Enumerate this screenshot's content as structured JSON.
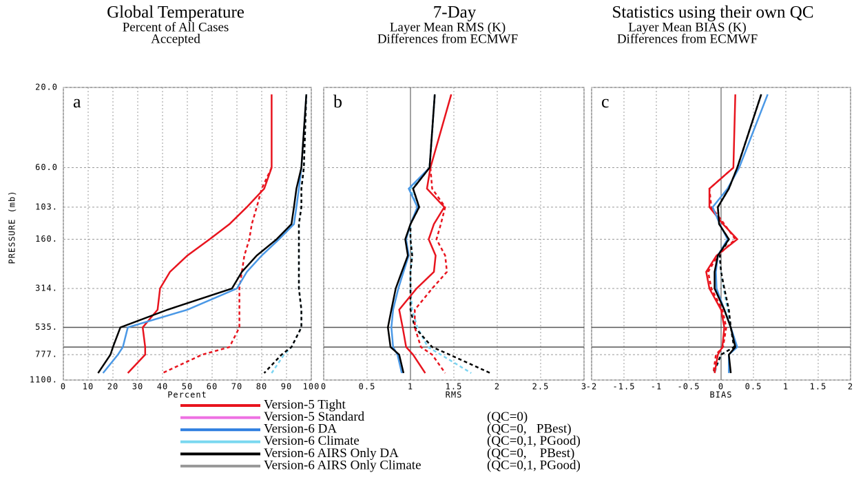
{
  "chart_data": [
    {
      "type": "line",
      "title": "Global Temperature",
      "subtitles": [
        "Percent of All Cases",
        "Accepted"
      ],
      "panel_label": "a",
      "ylabel": "PRESSURE (mb)",
      "yscale": "log",
      "ylim": [
        1100,
        20
      ],
      "yticks": [
        {
          "value": 20,
          "label": "20.0"
        },
        {
          "value": 60,
          "label": "60.0"
        },
        {
          "value": 103,
          "label": "103."
        },
        {
          "value": 160,
          "label": "160."
        },
        {
          "value": 314,
          "label": "314."
        },
        {
          "value": 535,
          "label": "535."
        },
        {
          "value": 777,
          "label": "777."
        },
        {
          "value": 1100,
          "label": "1100."
        }
      ],
      "hlines": [
        535,
        700
      ],
      "grid": true,
      "xlabel": "Percent",
      "xlim": [
        0,
        100
      ],
      "xticks": [
        0,
        10,
        20,
        30,
        40,
        50,
        60,
        70,
        80,
        90,
        100
      ],
      "y": [
        22,
        60,
        80,
        103,
        130,
        160,
        200,
        250,
        314,
        420,
        535,
        700,
        777,
        1000
      ],
      "series": [
        {
          "color": "#7ad4f2",
          "dash": true,
          "values": [
            98,
            97,
            96,
            96,
            95,
            95,
            95,
            95,
            95,
            96,
            96,
            92,
            89,
            84
          ]
        },
        {
          "color": "#000000",
          "dash": true,
          "values": [
            98,
            97,
            96,
            96,
            95,
            95,
            95,
            95,
            95,
            96,
            96,
            92,
            88,
            81
          ]
        },
        {
          "color": "#e8141e",
          "dash": true,
          "values": [
            null,
            84,
            80,
            78,
            76,
            75,
            73,
            72,
            71,
            71,
            71,
            67,
            56,
            40
          ]
        },
        {
          "color": "#e8141e",
          "dash": false,
          "values": [
            84,
            84,
            81,
            74,
            67,
            59,
            50,
            43,
            39,
            38,
            32,
            33,
            33,
            26
          ]
        },
        {
          "color": "#4a98e6",
          "dash": false,
          "values": [
            98,
            96,
            95,
            94,
            93,
            87,
            80,
            74,
            70,
            50,
            26,
            24,
            22,
            16
          ]
        },
        {
          "color": "#000000",
          "dash": false,
          "values": [
            98,
            96,
            94,
            93,
            92,
            86,
            78,
            72,
            68,
            42,
            23,
            20,
            19,
            14
          ]
        }
      ]
    },
    {
      "type": "line",
      "title": "7-Day",
      "subtitles": [
        "Layer Mean RMS (K)",
        "Differences from ECMWF"
      ],
      "panel_label": "b",
      "xlabel": "RMS",
      "xlim": [
        0,
        3
      ],
      "xticks": [
        0,
        0.5,
        1,
        1.5,
        2,
        2.5,
        3
      ],
      "vline": 1,
      "grid": true,
      "y": [
        22,
        60,
        80,
        103,
        130,
        160,
        200,
        250,
        314,
        420,
        535,
        700,
        777,
        1000
      ],
      "series": [
        {
          "color": "#7ad4f2",
          "dash": true,
          "values": [
            1.28,
            1.22,
            1.0,
            1.08,
            1.0,
            1.0,
            1.02,
            1.0,
            1.0,
            1.02,
            1.08,
            1.2,
            1.35,
            1.7
          ]
        },
        {
          "color": "#000000",
          "dash": true,
          "values": [
            1.28,
            1.22,
            1.03,
            1.1,
            1.0,
            1.0,
            1.02,
            1.0,
            1.0,
            1.0,
            1.05,
            1.25,
            1.45,
            1.92
          ]
        },
        {
          "color": "#e8141e",
          "dash": true,
          "values": [
            null,
            1.23,
            1.25,
            1.4,
            1.35,
            1.3,
            1.4,
            1.42,
            1.25,
            1.05,
            1.05,
            1.12,
            1.25,
            1.4
          ]
        },
        {
          "color": "#e8141e",
          "dash": false,
          "values": [
            1.47,
            1.23,
            1.19,
            1.39,
            1.27,
            1.21,
            1.29,
            1.27,
            1.07,
            0.87,
            0.91,
            0.95,
            1.03,
            1.17
          ]
        },
        {
          "color": "#4a98e6",
          "dash": false,
          "values": [
            1.28,
            1.22,
            0.98,
            1.08,
            1.0,
            0.95,
            0.98,
            0.92,
            0.86,
            0.8,
            0.78,
            0.8,
            0.85,
            0.9
          ]
        },
        {
          "color": "#000000",
          "dash": false,
          "values": [
            1.28,
            1.22,
            1.03,
            1.1,
            1.0,
            0.94,
            0.97,
            0.9,
            0.83,
            0.78,
            0.74,
            0.77,
            0.87,
            0.92
          ]
        }
      ]
    },
    {
      "type": "line",
      "title": "Statistics using their own QC",
      "subtitles": [
        "Layer Mean BIAS (K)",
        "Differences from ECMWF"
      ],
      "panel_label": "c",
      "xlabel": "BIAS",
      "xlim": [
        -2,
        2
      ],
      "xticks": [
        -2,
        -1.5,
        -1,
        -0.5,
        0,
        0.5,
        1,
        1.5,
        2
      ],
      "vline": 0,
      "grid": true,
      "y": [
        22,
        60,
        80,
        103,
        130,
        160,
        200,
        250,
        314,
        420,
        535,
        700,
        777,
        1000
      ],
      "series": [
        {
          "color": "#7ad4f2",
          "dash": true,
          "values": [
            0.62,
            0.25,
            0.12,
            -0.05,
            -0.03,
            0.12,
            -0.03,
            0.0,
            0.04,
            0.1,
            0.15,
            0.2,
            0.0,
            -0.1
          ]
        },
        {
          "color": "#000000",
          "dash": true,
          "values": [
            0.62,
            0.25,
            0.12,
            -0.05,
            -0.03,
            0.12,
            -0.02,
            0.0,
            0.05,
            0.12,
            0.15,
            0.2,
            0.0,
            -0.12
          ]
        },
        {
          "color": "#e8141e",
          "dash": true,
          "values": [
            null,
            0.19,
            -0.18,
            -0.15,
            0.05,
            0.22,
            -0.05,
            -0.2,
            -0.15,
            0.02,
            0.08,
            0.03,
            -0.08,
            -0.12
          ]
        },
        {
          "color": "#e8141e",
          "dash": false,
          "values": [
            0.22,
            0.19,
            -0.18,
            -0.18,
            0.03,
            0.25,
            -0.07,
            -0.23,
            -0.18,
            0.0,
            0.05,
            0.02,
            -0.05,
            -0.1
          ]
        },
        {
          "color": "#4a98e6",
          "dash": false,
          "values": [
            0.72,
            0.28,
            0.1,
            -0.13,
            -0.02,
            0.1,
            -0.05,
            -0.08,
            -0.07,
            0.05,
            0.15,
            0.25,
            0.12,
            0.12
          ]
        },
        {
          "color": "#000000",
          "dash": false,
          "values": [
            0.62,
            0.25,
            0.12,
            -0.05,
            -0.03,
            0.12,
            -0.05,
            -0.1,
            -0.1,
            0.05,
            0.15,
            0.22,
            0.12,
            0.15
          ]
        }
      ]
    }
  ],
  "legend": [
    {
      "label": "Version-5 Tight",
      "color": "#e8141e"
    },
    {
      "label": "Version-5 Standard",
      "color": "#ee70e2",
      "note": "(QC=0)"
    },
    {
      "label": "Version-6 DA",
      "color": "#2f7fe0",
      "note": "(QC=0,   PBest)"
    },
    {
      "label": "Version-6 Climate",
      "color": "#7ad8f0",
      "note": "(QC=0,1, PGood)"
    },
    {
      "label": "Version-6 AIRS Only DA",
      "color": "#000000",
      "note": "(QC=0,    PBest)"
    },
    {
      "label": "Version-6 AIRS Only Climate",
      "color": "#999999",
      "note": "(QC=0,1, PGood)"
    }
  ]
}
